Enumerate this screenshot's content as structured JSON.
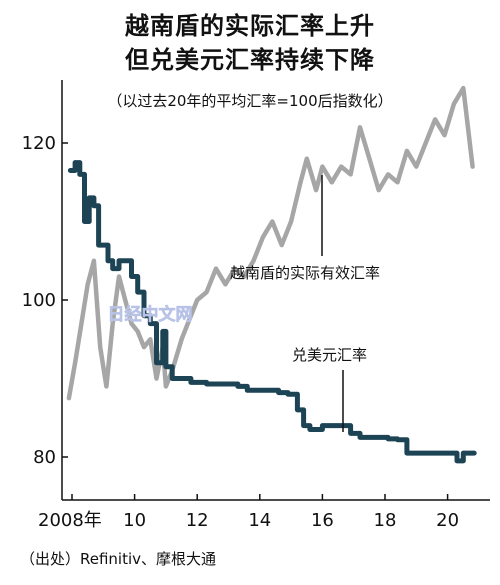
{
  "title_line1": "越南盾的实际汇率上升",
  "title_line2": "但兑美元汇率持续下降",
  "subtitle": "（以过去20年的平均汇率=100后指数化）",
  "source": "（出处）Refinitiv、摩根大通",
  "watermark": "日经中文网",
  "colors": {
    "reer": "#a6a6a6",
    "usd": "#1d4455",
    "axis": "#111111"
  },
  "chart_data": {
    "type": "line",
    "xlabel": "",
    "ylabel": "",
    "xlim": [
      2007.6,
      2021.2
    ],
    "ylim": [
      75,
      135
    ],
    "x_ticks": [
      2008,
      2010,
      2012,
      2014,
      2016,
      2018,
      2020
    ],
    "x_tick_labels": [
      "2008年",
      "10",
      "12",
      "14",
      "16",
      "18",
      "20"
    ],
    "y_ticks": [
      80,
      100,
      120
    ],
    "y_tick_labels": [
      "80",
      "100",
      "120"
    ],
    "grid": false,
    "series": [
      {
        "name": "越南盾的实际有效汇率",
        "color": "#a6a6a6",
        "x": [
          2007.9,
          2008.1,
          2008.3,
          2008.5,
          2008.7,
          2008.9,
          2009.1,
          2009.3,
          2009.5,
          2009.7,
          2009.9,
          2010.1,
          2010.3,
          2010.5,
          2010.7,
          2010.9,
          2011.0,
          2011.2,
          2011.5,
          2011.8,
          2012.0,
          2012.3,
          2012.6,
          2012.9,
          2013.2,
          2013.5,
          2013.8,
          2014.1,
          2014.4,
          2014.7,
          2015.0,
          2015.3,
          2015.5,
          2015.8,
          2016.0,
          2016.3,
          2016.6,
          2016.9,
          2017.2,
          2017.5,
          2017.8,
          2018.1,
          2018.4,
          2018.7,
          2019.0,
          2019.3,
          2019.6,
          2019.9,
          2020.2,
          2020.5,
          2020.8
        ],
        "values": [
          87.5,
          92,
          97,
          102,
          105,
          94,
          89,
          97,
          103,
          100,
          97,
          96,
          94,
          95,
          90,
          94,
          89,
          91,
          95,
          98,
          100,
          101,
          104,
          102,
          104,
          103,
          105,
          108,
          110,
          107,
          110,
          115,
          118,
          114,
          117,
          115,
          117,
          116,
          122,
          118,
          114,
          116,
          115,
          119,
          117,
          120,
          123,
          121,
          125,
          127,
          117
        ]
      },
      {
        "name": "兑美元汇率",
        "color": "#1d4455",
        "x": [
          2007.95,
          2008.1,
          2008.25,
          2008.4,
          2008.55,
          2008.7,
          2008.85,
          2009.0,
          2009.15,
          2009.3,
          2009.5,
          2009.7,
          2009.9,
          2010.1,
          2010.3,
          2010.5,
          2010.7,
          2010.9,
          2011.0,
          2011.2,
          2011.5,
          2011.8,
          2012.0,
          2012.3,
          2012.6,
          2013.0,
          2013.3,
          2013.6,
          2014.0,
          2014.3,
          2014.6,
          2014.9,
          2015.2,
          2015.4,
          2015.6,
          2015.8,
          2016.0,
          2016.3,
          2016.6,
          2016.9,
          2017.2,
          2017.5,
          2017.8,
          2018.1,
          2018.4,
          2018.7,
          2019.0,
          2019.3,
          2019.6,
          2019.9,
          2020.1,
          2020.3,
          2020.5,
          2020.85
        ],
        "values": [
          116.5,
          117.5,
          116,
          110,
          113,
          112,
          107,
          107,
          105,
          104,
          105,
          105,
          103,
          101,
          98,
          97,
          92,
          96,
          91.5,
          90,
          90,
          89.5,
          89.5,
          89.3,
          89.3,
          89.3,
          89,
          88.5,
          88.5,
          88.5,
          88.2,
          88,
          86,
          84,
          83.5,
          83.5,
          84,
          84,
          84,
          83,
          82.5,
          82.5,
          82.5,
          82.3,
          82.2,
          80.5,
          80.5,
          80.5,
          80.5,
          80.5,
          80.5,
          79.5,
          80.5,
          80.5
        ]
      }
    ],
    "annotations": [
      {
        "text": "越南盾的实际有效汇率",
        "series": 0
      },
      {
        "text": "兑美元汇率",
        "series": 1
      }
    ]
  }
}
